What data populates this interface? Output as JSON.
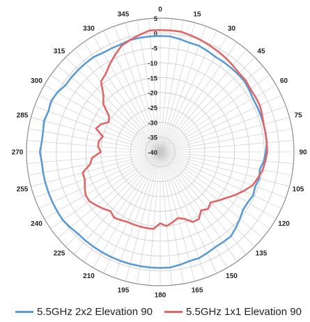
{
  "chart_data": {
    "type": "line",
    "subtype": "polar",
    "title": "",
    "angle_unit": "degrees",
    "angle_direction": "clockwise",
    "zero_at": "top",
    "angle_ticks": [
      0,
      15,
      30,
      45,
      60,
      75,
      90,
      105,
      120,
      135,
      150,
      165,
      180,
      195,
      210,
      225,
      240,
      255,
      270,
      285,
      300,
      315,
      330,
      345
    ],
    "radial_range": [
      -40,
      5
    ],
    "radial_ticks": [
      5,
      0,
      -5,
      -10,
      -15,
      -20,
      -25,
      -30,
      -35,
      -40
    ],
    "grid": true,
    "legend_position": "bottom",
    "series": [
      {
        "name": "5.5GHz 2x2 Elevation 90",
        "color": "#5b9bd5",
        "angles": [
          0,
          5,
          10,
          15,
          20,
          25,
          30,
          35,
          40,
          45,
          50,
          55,
          60,
          65,
          70,
          75,
          80,
          85,
          90,
          95,
          100,
          105,
          110,
          115,
          120,
          125,
          130,
          135,
          140,
          145,
          150,
          155,
          160,
          165,
          170,
          175,
          180,
          185,
          190,
          195,
          200,
          205,
          210,
          215,
          220,
          225,
          230,
          235,
          240,
          245,
          250,
          255,
          260,
          265,
          270,
          275,
          280,
          285,
          290,
          295,
          300,
          305,
          310,
          315,
          320,
          325,
          330,
          335,
          340,
          345,
          350,
          355
        ],
        "values": [
          -1,
          -1,
          -1.5,
          -2,
          -2,
          -2.5,
          -3,
          -3,
          -3,
          -3,
          -3,
          -3.5,
          -4,
          -4,
          -4,
          -4,
          -4,
          -4,
          -4.5,
          -5,
          -6,
          -5.5,
          -6,
          -5.5,
          -6,
          -6,
          -5,
          -4,
          -3,
          -3,
          -3,
          -2.5,
          -2,
          -2,
          -1.5,
          -1,
          -1,
          -1,
          -1,
          -1,
          -1,
          -1,
          -1,
          -1,
          -1,
          -1,
          -0.5,
          0,
          0,
          0,
          0,
          0,
          0,
          0,
          0.5,
          0,
          0,
          0.5,
          0,
          0.5,
          0,
          -1,
          -1,
          -1,
          -1,
          -1,
          -1.5,
          -1.5,
          -1.5,
          -1,
          -1,
          -1
        ]
      },
      {
        "name": "5.5GHz 1x1 Elevation 90",
        "color": "#e06666",
        "angles": [
          0,
          5,
          10,
          15,
          20,
          25,
          30,
          35,
          40,
          45,
          50,
          55,
          60,
          65,
          70,
          75,
          80,
          85,
          90,
          95,
          100,
          105,
          110,
          115,
          120,
          125,
          130,
          135,
          140,
          145,
          150,
          155,
          160,
          165,
          170,
          175,
          180,
          185,
          190,
          195,
          200,
          205,
          210,
          215,
          220,
          225,
          230,
          235,
          240,
          245,
          250,
          255,
          260,
          265,
          270,
          275,
          280,
          285,
          290,
          295,
          300,
          305,
          310,
          315,
          320,
          325,
          330,
          335,
          340,
          345,
          350,
          355
        ],
        "values": [
          1,
          1,
          1,
          0.5,
          0,
          -0.5,
          -1,
          -1.5,
          -2,
          -2.5,
          -2.5,
          -3,
          -3,
          -3,
          -3.5,
          -4,
          -4,
          -4,
          -4,
          -4.5,
          -5,
          -6,
          -7,
          -9,
          -11,
          -13,
          -14.5,
          -16,
          -15,
          -16,
          -14,
          -14,
          -16,
          -17,
          -16,
          -15,
          -16,
          -14,
          -14,
          -14,
          -14,
          -14,
          -13.5,
          -13,
          -14,
          -13,
          -12,
          -11,
          -11,
          -12,
          -13,
          -13,
          -16,
          -17,
          -20,
          -19,
          -19,
          -20,
          -17,
          -18,
          -20,
          -19,
          -15,
          -13,
          -9,
          -8,
          -6,
          -4,
          -2,
          -1,
          0,
          1
        ]
      }
    ]
  }
}
